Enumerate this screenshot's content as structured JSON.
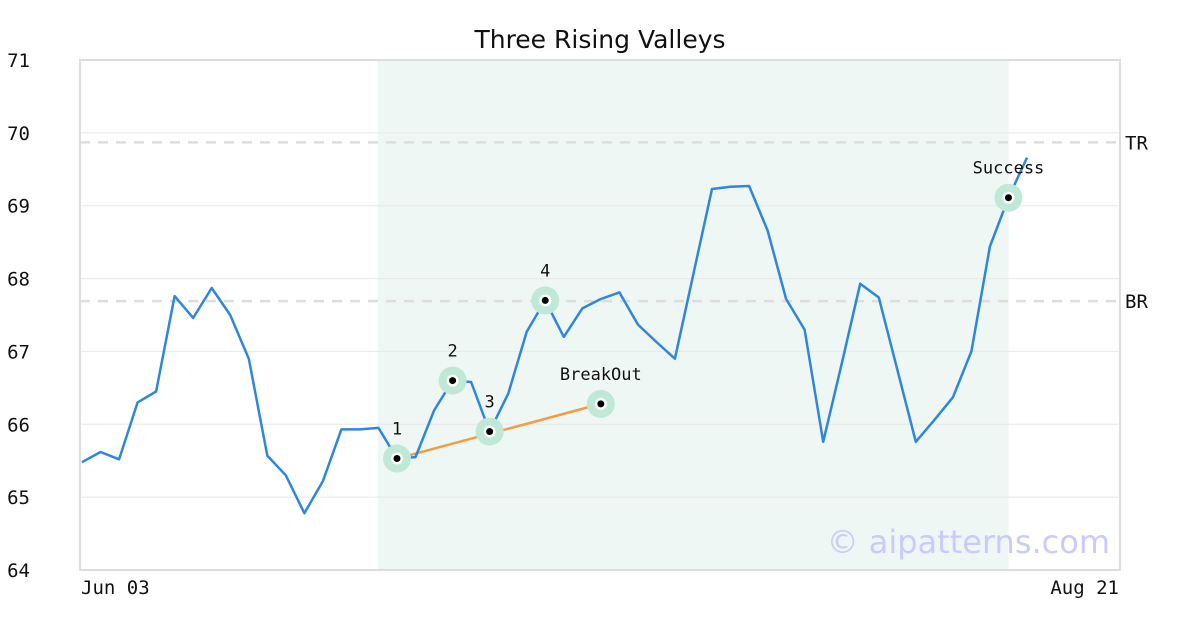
{
  "chart_data": {
    "type": "line",
    "title": "Three Rising Valleys",
    "xlabel": "",
    "ylabel": "",
    "ylim": [
      64,
      71
    ],
    "yticks": [
      "64",
      "65",
      "66",
      "67",
      "68",
      "69",
      "70",
      "71"
    ],
    "xtick_labels": [
      "Jun 03",
      "Aug 21"
    ],
    "grid": true,
    "watermark": "© aipatterns.com",
    "colors": {
      "line": "#2e86de",
      "trend": "#f39c44",
      "shade": "#eef7f3",
      "marker_halo": "#bfe9d6",
      "level": "#dddddd",
      "grid": "#e8e8e8",
      "frame": "#dddddd"
    },
    "series": [
      {
        "values": [
          65.48,
          65.62,
          65.52,
          66.3,
          66.45,
          67.76,
          67.46,
          67.87,
          67.5,
          66.9,
          65.57,
          65.3,
          64.78,
          65.22,
          65.93,
          65.93,
          65.95,
          65.53,
          65.55,
          66.19,
          66.6,
          66.58,
          65.9,
          66.42,
          67.27,
          67.7,
          67.2,
          67.59,
          67.72,
          67.81,
          67.37,
          67.13,
          66.9,
          68.07,
          69.23,
          69.26,
          69.27,
          68.66,
          67.72,
          67.3,
          65.76,
          66.83,
          67.93,
          67.74,
          66.75,
          65.76,
          66.06,
          66.37,
          67.0,
          68.44,
          69.11,
          69.66
        ]
      }
    ],
    "levels": [
      {
        "label": "TR",
        "value": 69.87
      },
      {
        "label": "BR",
        "value": 67.69
      }
    ],
    "shaded_region": {
      "start_index": 15,
      "end_index": 50
    },
    "annotations": [
      {
        "label": "1",
        "index": 17,
        "value": 65.53
      },
      {
        "label": "2",
        "index": 20,
        "value": 66.6
      },
      {
        "label": "3",
        "index": 22,
        "value": 65.9
      },
      {
        "label": "4",
        "index": 25,
        "value": 67.7
      },
      {
        "label": "BreakOut",
        "index": 28,
        "value": 66.28
      },
      {
        "label": "Success",
        "index": 50,
        "value": 69.11
      }
    ],
    "trendline": {
      "from": {
        "index": 17,
        "value": 65.53
      },
      "to": {
        "index": 28,
        "value": 66.28
      }
    }
  }
}
